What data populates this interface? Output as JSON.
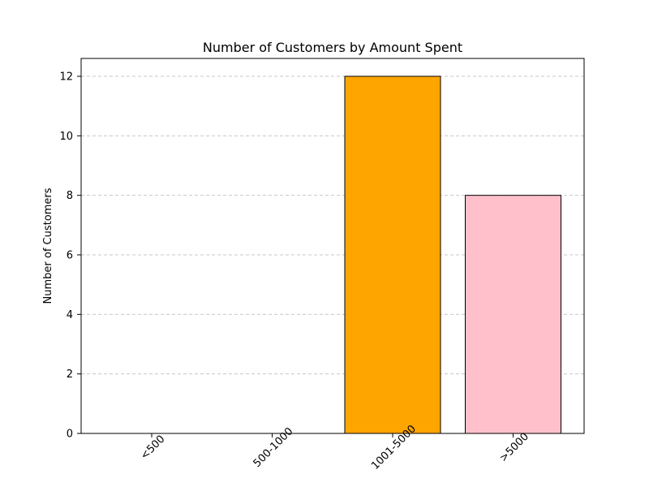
{
  "chart_data": {
    "type": "bar",
    "title": "Number of Customers by Amount Spent",
    "xlabel": "",
    "ylabel": "Number of Customers",
    "categories": [
      "<500",
      "500-1000",
      "1001-5000",
      ">5000"
    ],
    "values": [
      0,
      0,
      12,
      8
    ],
    "colors": [
      "#87ceeb",
      "#90ee90",
      "#ffa500",
      "#ffc0cb"
    ],
    "edge_color": "#000000",
    "ylim": [
      0,
      12.6
    ],
    "yticks": [
      0,
      2,
      4,
      6,
      8,
      10,
      12
    ],
    "grid": "y-dashed",
    "grid_color": "#c8c8c8",
    "xtick_rotation": -45
  }
}
